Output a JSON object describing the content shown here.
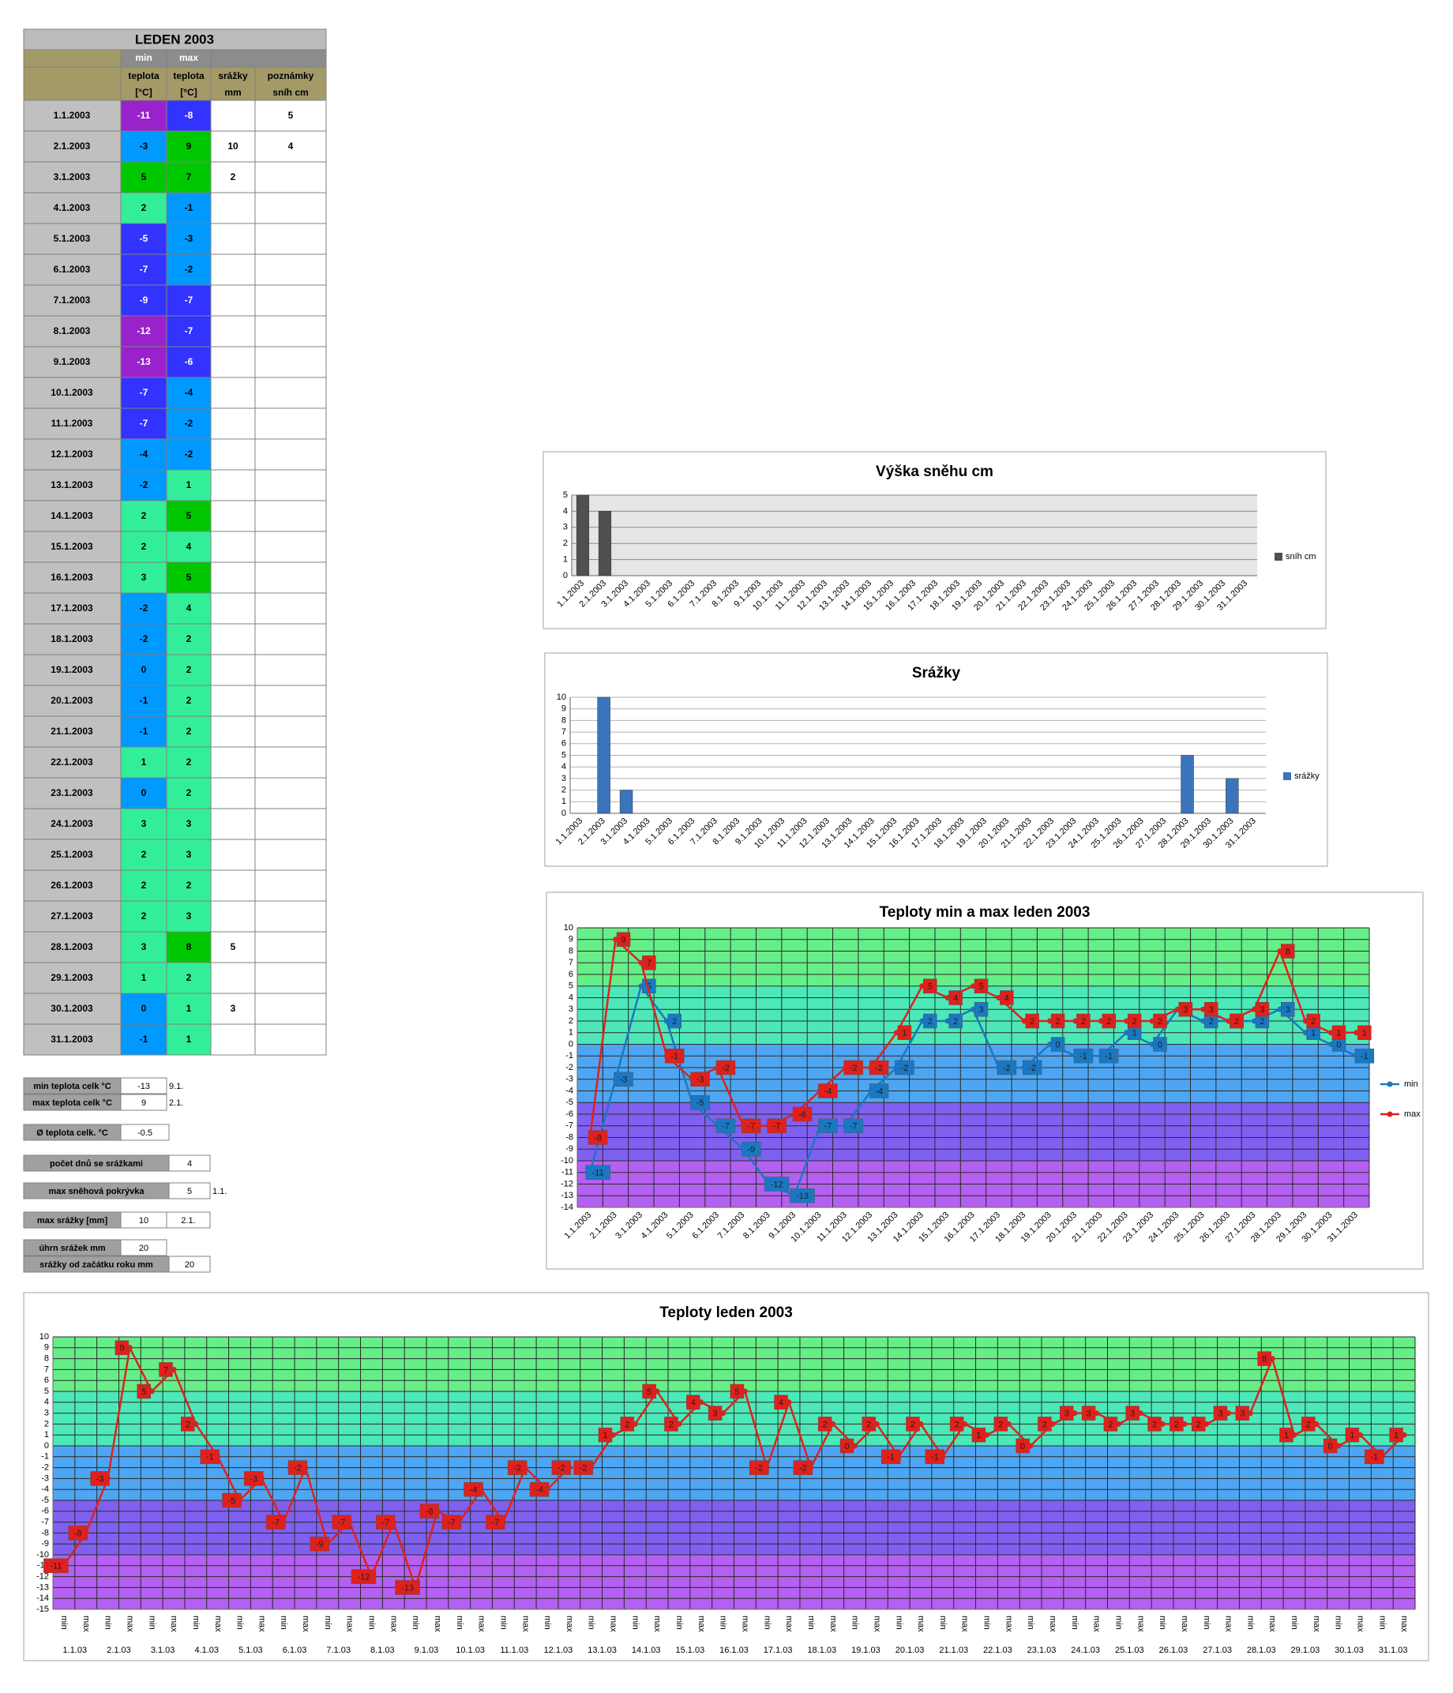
{
  "table": {
    "title": "LEDEN 2003",
    "header": {
      "top": [
        "min",
        "max"
      ],
      "lines": [
        [
          "teplota",
          "[°C]"
        ],
        [
          "teplota",
          "[°C]"
        ],
        [
          "srážky",
          "mm"
        ],
        [
          "poznámky",
          "sníh cm"
        ]
      ]
    },
    "color_scale": [
      {
        "from": 5,
        "color": "#00c800",
        "text": "#000000"
      },
      {
        "from": 1,
        "color": "#33ee99",
        "text": "#000000"
      },
      {
        "from": -4,
        "color": "#0099ff",
        "text": "#000000"
      },
      {
        "from": -9,
        "color": "#3333ff",
        "text": "#ffffff"
      },
      {
        "from": null,
        "color": "#9922cc",
        "text": "#ffffff"
      }
    ],
    "rows": [
      [
        "1.1.2003",
        -11,
        -8,
        null,
        5
      ],
      [
        "2.1.2003",
        -3,
        9,
        10,
        4
      ],
      [
        "3.1.2003",
        5,
        7,
        2,
        null
      ],
      [
        "4.1.2003",
        2,
        -1,
        null,
        null
      ],
      [
        "5.1.2003",
        -5,
        -3,
        null,
        null
      ],
      [
        "6.1.2003",
        -7,
        -2,
        null,
        null
      ],
      [
        "7.1.2003",
        -9,
        -7,
        null,
        null
      ],
      [
        "8.1.2003",
        -12,
        -7,
        null,
        null
      ],
      [
        "9.1.2003",
        -13,
        -6,
        null,
        null
      ],
      [
        "10.1.2003",
        -7,
        -4,
        null,
        null
      ],
      [
        "11.1.2003",
        -7,
        -2,
        null,
        null
      ],
      [
        "12.1.2003",
        -4,
        -2,
        null,
        null
      ],
      [
        "13.1.2003",
        -2,
        1,
        null,
        null
      ],
      [
        "14.1.2003",
        2,
        5,
        null,
        null
      ],
      [
        "15.1.2003",
        2,
        4,
        null,
        null
      ],
      [
        "16.1.2003",
        3,
        5,
        null,
        null
      ],
      [
        "17.1.2003",
        -2,
        4,
        null,
        null
      ],
      [
        "18.1.2003",
        -2,
        2,
        null,
        null
      ],
      [
        "19.1.2003",
        0,
        2,
        null,
        null
      ],
      [
        "20.1.2003",
        -1,
        2,
        null,
        null
      ],
      [
        "21.1.2003",
        -1,
        2,
        null,
        null
      ],
      [
        "22.1.2003",
        1,
        2,
        null,
        null
      ],
      [
        "23.1.2003",
        0,
        2,
        null,
        null
      ],
      [
        "24.1.2003",
        3,
        3,
        null,
        null
      ],
      [
        "25.1.2003",
        2,
        3,
        null,
        null
      ],
      [
        "26.1.2003",
        2,
        2,
        null,
        null
      ],
      [
        "27.1.2003",
        2,
        3,
        null,
        null
      ],
      [
        "28.1.2003",
        3,
        8,
        5,
        null
      ],
      [
        "29.1.2003",
        1,
        2,
        null,
        null
      ],
      [
        "30.1.2003",
        0,
        1,
        3,
        null
      ],
      [
        "31.1.2003",
        -1,
        1,
        null,
        null
      ]
    ]
  },
  "summary": [
    {
      "label": "min teplota celk °C",
      "value": -13,
      "note": "9.1."
    },
    {
      "label": "max teplota celk °C",
      "value": 9,
      "note": "2.1."
    },
    {
      "label": "Ø teplota celk. °C",
      "value": -0.5
    },
    {
      "label": "počet dnů se srážkami",
      "value": 4
    },
    {
      "label": "max sněhová pokrývka",
      "value": 5,
      "note": "1.1."
    },
    {
      "label": "max srážky [mm]",
      "value": 10,
      "note": "2.1."
    },
    {
      "label": "úhrn srážek  mm",
      "value": 20
    },
    {
      "label": "srážky od začátku roku mm",
      "value": 20
    }
  ],
  "chart_data": [
    {
      "type": "bar",
      "title": "Výška sněhu cm",
      "categories": [
        "1.1.2003",
        "2.1.2003",
        "3.1.2003",
        "4.1.2003",
        "5.1.2003",
        "6.1.2003",
        "7.1.2003",
        "8.1.2003",
        "9.1.2003",
        "10.1.2003",
        "11.1.2003",
        "12.1.2003",
        "13.1.2003",
        "14.1.2003",
        "15.1.2003",
        "16.1.2003",
        "17.1.2003",
        "18.1.2003",
        "19.1.2003",
        "20.1.2003",
        "21.1.2003",
        "22.1.2003",
        "23.1.2003",
        "24.1.2003",
        "25.1.2003",
        "26.1.2003",
        "27.1.2003",
        "28.1.2003",
        "29.1.2003",
        "30.1.2003",
        "31.1.2003"
      ],
      "series": [
        {
          "name": "sníh cm",
          "color": "#505050",
          "values": [
            5,
            4,
            null,
            null,
            null,
            null,
            null,
            null,
            null,
            null,
            null,
            null,
            null,
            null,
            null,
            null,
            null,
            null,
            null,
            null,
            null,
            null,
            null,
            null,
            null,
            null,
            null,
            null,
            null,
            null,
            null
          ]
        }
      ],
      "ylim": [
        0,
        5
      ],
      "yticks": [
        0,
        1,
        2,
        3,
        4,
        5
      ],
      "grid": true,
      "grid_color": "#8a8a8a",
      "plot_background": "#e6e6e6",
      "legend": "right"
    },
    {
      "type": "bar",
      "title": "Srážky",
      "categories": [
        "1.1.2003",
        "2.1.2003",
        "3.1.2003",
        "4.1.2003",
        "5.1.2003",
        "6.1.2003",
        "7.1.2003",
        "8.1.2003",
        "9.1.2003",
        "10.1.2003",
        "11.1.2003",
        "12.1.2003",
        "13.1.2003",
        "14.1.2003",
        "15.1.2003",
        "16.1.2003",
        "17.1.2003",
        "18.1.2003",
        "19.1.2003",
        "20.1.2003",
        "21.1.2003",
        "22.1.2003",
        "23.1.2003",
        "24.1.2003",
        "25.1.2003",
        "26.1.2003",
        "27.1.2003",
        "28.1.2003",
        "29.1.2003",
        "30.1.2003",
        "31.1.2003"
      ],
      "series": [
        {
          "name": "srážky",
          "color": "#3a74bc",
          "values": [
            null,
            10,
            2,
            null,
            null,
            null,
            null,
            null,
            null,
            null,
            null,
            null,
            null,
            null,
            null,
            null,
            null,
            null,
            null,
            null,
            null,
            null,
            null,
            null,
            null,
            null,
            null,
            5,
            null,
            3,
            null
          ]
        }
      ],
      "ylim": [
        0,
        10
      ],
      "yticks": [
        0,
        1,
        2,
        3,
        4,
        5,
        6,
        7,
        8,
        9,
        10
      ],
      "grid": true,
      "grid_color": "#b0b0b0",
      "plot_background": "#ffffff",
      "legend": "right"
    },
    {
      "type": "line",
      "title": "Teploty min a max leden 2003",
      "categories": [
        "1.1.2003",
        "2.1.2003",
        "3.1.2003",
        "4.1.2003",
        "5.1.2003",
        "6.1.2003",
        "7.1.2003",
        "8.1.2003",
        "9.1.2003",
        "10.1.2003",
        "11.1.2003",
        "12.1.2003",
        "13.1.2003",
        "14.1.2003",
        "15.1.2003",
        "16.1.2003",
        "17.1.2003",
        "18.1.2003",
        "19.1.2003",
        "20.1.2003",
        "21.1.2003",
        "22.1.2003",
        "23.1.2003",
        "24.1.2003",
        "25.1.2003",
        "26.1.2003",
        "27.1.2003",
        "28.1.2003",
        "29.1.2003",
        "30.1.2003",
        "31.1.2003"
      ],
      "series": [
        {
          "name": "min",
          "color": "#1a78c2",
          "values": [
            -11,
            -3,
            5,
            2,
            -5,
            -7,
            -9,
            -12,
            -13,
            -7,
            -7,
            -4,
            -2,
            2,
            2,
            3,
            -2,
            -2,
            0,
            -1,
            -1,
            1,
            0,
            3,
            2,
            2,
            2,
            3,
            1,
            0,
            -1
          ]
        },
        {
          "name": "max",
          "color": "#e0201c",
          "values": [
            -8,
            9,
            7,
            -1,
            -3,
            -2,
            -7,
            -7,
            -6,
            -4,
            -2,
            -2,
            1,
            5,
            4,
            5,
            4,
            2,
            2,
            2,
            2,
            2,
            2,
            3,
            3,
            2,
            3,
            8,
            2,
            1,
            1
          ]
        }
      ],
      "ylim": [
        -14,
        10
      ],
      "yticks": [
        -14,
        -13,
        -12,
        -11,
        -10,
        -9,
        -8,
        -7,
        -6,
        -5,
        -4,
        -3,
        -2,
        -1,
        0,
        1,
        2,
        3,
        4,
        5,
        6,
        7,
        8,
        9,
        10
      ],
      "bands": [
        {
          "from": 5,
          "to": 10,
          "color": "#66ee88"
        },
        {
          "from": 0,
          "to": 5,
          "color": "#4de8b8"
        },
        {
          "from": -5,
          "to": 0,
          "color": "#4ea6f2"
        },
        {
          "from": -10,
          "to": -5,
          "color": "#8060f0"
        },
        {
          "from": -14,
          "to": -10,
          "color": "#b460f0"
        }
      ],
      "grid": true,
      "vgrid": true,
      "grid_color": "#2a2a2a",
      "data_labels": true,
      "legend": "right"
    },
    {
      "type": "line",
      "title": "Teploty leden 2003",
      "categories": [
        "min",
        "max",
        "min",
        "max",
        "min",
        "max",
        "min",
        "max",
        "min",
        "max",
        "min",
        "max",
        "min",
        "max",
        "min",
        "max",
        "min",
        "max",
        "min",
        "max",
        "min",
        "max",
        "min",
        "max",
        "min",
        "max",
        "min",
        "max",
        "min",
        "max",
        "min",
        "max",
        "min",
        "max",
        "min",
        "max",
        "min",
        "max",
        "min",
        "max",
        "min",
        "max",
        "min",
        "max",
        "min",
        "max",
        "min",
        "max",
        "min",
        "max",
        "min",
        "max",
        "min",
        "max",
        "min",
        "max",
        "min",
        "max",
        "min",
        "max",
        "min",
        "max"
      ],
      "groups": [
        "1.1.03",
        "2.1.03",
        "3.1.03",
        "4.1.03",
        "5.1.03",
        "6.1.03",
        "7.1.03",
        "8.1.03",
        "9.1.03",
        "10.1.03",
        "11.1.03",
        "12.1.03",
        "13.1.03",
        "14.1.03",
        "15.1.03",
        "16.1.03",
        "17.1.03",
        "18.1.03",
        "19.1.03",
        "20.1.03",
        "21.1.03",
        "22.1.03",
        "23.1.03",
        "24.1.03",
        "25.1.03",
        "26.1.03",
        "27.1.03",
        "28.1.03",
        "29.1.03",
        "30.1.03",
        "31.1.03"
      ],
      "values": [
        -11,
        -8,
        -3,
        9,
        5,
        7,
        2,
        -1,
        -5,
        -3,
        -7,
        -2,
        -9,
        -7,
        -12,
        -7,
        -13,
        -6,
        -7,
        -4,
        -7,
        -2,
        -4,
        -2,
        -2,
        1,
        2,
        5,
        2,
        4,
        3,
        5,
        -2,
        4,
        -2,
        2,
        0,
        2,
        -1,
        2,
        -1,
        2,
        1,
        2,
        0,
        2,
        3,
        3,
        2,
        3,
        2,
        2,
        2,
        3,
        3,
        8,
        1,
        2,
        0,
        1,
        -1,
        1
      ],
      "color": "#e0201c",
      "ylim": [
        -15,
        10
      ],
      "yticks": [
        -15,
        -14,
        -13,
        -12,
        -11,
        -10,
        -9,
        -8,
        -7,
        -6,
        -5,
        -4,
        -3,
        -2,
        -1,
        0,
        1,
        2,
        3,
        4,
        5,
        6,
        7,
        8,
        9,
        10
      ],
      "bands": [
        {
          "from": 5,
          "to": 10,
          "color": "#66ee88"
        },
        {
          "from": 0,
          "to": 5,
          "color": "#4de8b8"
        },
        {
          "from": -5,
          "to": 0,
          "color": "#4ea6f2"
        },
        {
          "from": -10,
          "to": -5,
          "color": "#8060f0"
        },
        {
          "from": -15,
          "to": -10,
          "color": "#b460f0"
        }
      ],
      "grid": true,
      "vgrid": true,
      "grid_color": "#2a2a2a",
      "data_labels": true
    }
  ]
}
